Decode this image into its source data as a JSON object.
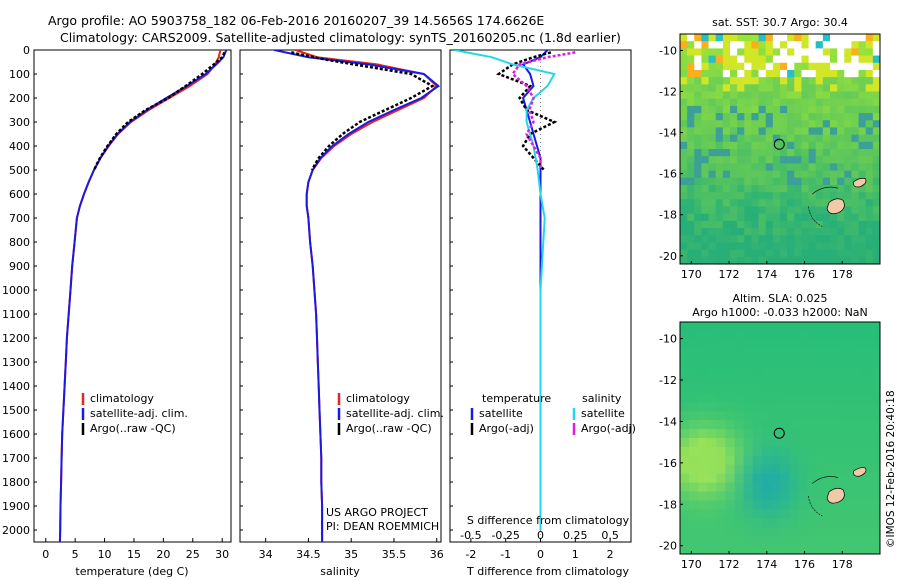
{
  "header": {
    "line1": "Argo profile: AO 5903758_182 06-Feb-2016 20160207_39 14.5656S 174.6626E",
    "line2": "Climatology: CARS2009. Satellite-adjusted climatology: synTS_20160205.nc (1.8d earlier)"
  },
  "colors": {
    "climatology": "#e8231c",
    "satellite": "#1a1ae6",
    "argo": "#000000",
    "satellite_salinity": "#22d8e8",
    "argo_adj_salinity": "#e01ee0"
  },
  "depth_axis": {
    "range": [
      0,
      2050
    ],
    "ticks": [
      "0",
      "100",
      "200",
      "300",
      "400",
      "500",
      "600",
      "700",
      "800",
      "900",
      "1000",
      "1100",
      "1200",
      "1300",
      "1400",
      "1500",
      "1600",
      "1700",
      "1800",
      "1900",
      "2000"
    ]
  },
  "temperature_panel": {
    "xlabel": "temperature (deg C)",
    "xticks": [
      "0",
      "5",
      "10",
      "15",
      "20",
      "25",
      "30"
    ],
    "legend": [
      "climatology",
      "satellite-adj. clim.",
      "Argo(..raw -QC)"
    ]
  },
  "salinity_panel": {
    "xlabel": "salinity",
    "xticks": [
      "34",
      "34.5",
      "35",
      "35.5",
      "36"
    ],
    "legend": [
      "climatology",
      "satellite-adj. clim.",
      "Argo(..raw -QC)"
    ],
    "project_line1": "US ARGO PROJECT",
    "project_line2": "PI: DEAN ROEMMICH"
  },
  "difference_panel": {
    "top_axis_label": "S difference from climatology",
    "top_ticks": [
      "-0.5",
      "-0.25",
      "0",
      "0.25",
      "0.5"
    ],
    "xlabel": "T difference from climatology",
    "xticks": [
      "-2",
      "-1",
      "0",
      "1",
      "2"
    ],
    "legend_temp_title": "temperature",
    "legend_temp_items": [
      "satellite",
      "Argo(-adj)"
    ],
    "legend_sal_title": "salinity",
    "legend_sal_items": [
      "satellite",
      "Argo(-adj)"
    ]
  },
  "sst_map": {
    "title": "sat. SST: 30.7  Argo: 30.4",
    "yticks": [
      "-10",
      "-12",
      "-14",
      "-16",
      "-18",
      "-20"
    ],
    "xticks": [
      "170",
      "172",
      "174",
      "176",
      "178"
    ]
  },
  "sla_map": {
    "title_line1": "Altim. SLA: 0.025",
    "title_line2": "Argo h1000: -0.033 h2000: NaN",
    "yticks": [
      "-10",
      "-12",
      "-14",
      "-16",
      "-18",
      "-20"
    ],
    "xticks": [
      "170",
      "172",
      "174",
      "176",
      "178"
    ]
  },
  "watermark": "©IMOS 12-Feb-2016 20:40:18",
  "chart_data": [
    {
      "type": "line",
      "name": "temperature-profile",
      "xlabel": "temperature (deg C)",
      "ylabel": "depth (m)",
      "xlim": [
        -2,
        31.5
      ],
      "ylim": [
        2050,
        0
      ],
      "series": [
        {
          "name": "climatology",
          "color": "#e8231c",
          "points": [
            [
              29.7,
              0
            ],
            [
              29.4,
              30
            ],
            [
              28.8,
              60
            ],
            [
              27.5,
              100
            ],
            [
              24.5,
              150
            ],
            [
              21,
              200
            ],
            [
              17.5,
              250
            ],
            [
              14.5,
              300
            ],
            [
              12.3,
              350
            ],
            [
              10.7,
              400
            ],
            [
              9.3,
              450
            ],
            [
              8.2,
              500
            ],
            [
              7.3,
              550
            ],
            [
              6.5,
              600
            ],
            [
              5.8,
              650
            ],
            [
              5.3,
              700
            ],
            [
              4.9,
              800
            ],
            [
              4.5,
              900
            ],
            [
              4.2,
              1000
            ],
            [
              3.9,
              1100
            ],
            [
              3.6,
              1200
            ],
            [
              3.4,
              1300
            ],
            [
              3.2,
              1400
            ],
            [
              3.0,
              1500
            ],
            [
              2.8,
              1600
            ],
            [
              2.7,
              1700
            ],
            [
              2.6,
              1800
            ],
            [
              2.5,
              1900
            ],
            [
              2.45,
              2000
            ],
            [
              2.4,
              2050
            ]
          ]
        },
        {
          "name": "satellite-adj. clim.",
          "color": "#1a1ae6",
          "points": [
            [
              30.7,
              0
            ],
            [
              30.2,
              30
            ],
            [
              29.0,
              60
            ],
            [
              27.2,
              100
            ],
            [
              24.0,
              150
            ],
            [
              20.5,
              200
            ],
            [
              17.2,
              250
            ],
            [
              14.3,
              300
            ],
            [
              12.2,
              350
            ],
            [
              10.6,
              400
            ],
            [
              9.3,
              450
            ],
            [
              8.2,
              500
            ],
            [
              7.3,
              550
            ],
            [
              6.5,
              600
            ],
            [
              5.8,
              650
            ],
            [
              5.3,
              700
            ],
            [
              4.9,
              800
            ],
            [
              4.5,
              900
            ],
            [
              4.2,
              1000
            ],
            [
              3.9,
              1100
            ],
            [
              3.6,
              1200
            ],
            [
              3.4,
              1300
            ],
            [
              3.2,
              1400
            ],
            [
              3.0,
              1500
            ],
            [
              2.8,
              1600
            ],
            [
              2.7,
              1700
            ],
            [
              2.6,
              1800
            ],
            [
              2.5,
              1900
            ],
            [
              2.45,
              2000
            ],
            [
              2.4,
              2050
            ]
          ]
        },
        {
          "name": "Argo(..raw -QC)",
          "color": "#000000",
          "points": [
            [
              30.4,
              10
            ],
            [
              30.0,
              30
            ],
            [
              28.6,
              60
            ],
            [
              26.6,
              100
            ],
            [
              23.8,
              150
            ],
            [
              20.8,
              200
            ],
            [
              17.0,
              250
            ],
            [
              14.0,
              300
            ],
            [
              12.0,
              350
            ],
            [
              10.5,
              400
            ],
            [
              9.2,
              450
            ],
            [
              8.2,
              500
            ]
          ]
        }
      ]
    },
    {
      "type": "line",
      "name": "salinity-profile",
      "xlabel": "salinity",
      "ylabel": "depth (m)",
      "xlim": [
        33.7,
        36.05
      ],
      "ylim": [
        2050,
        0
      ],
      "series": [
        {
          "name": "climatology",
          "color": "#e8231c",
          "points": [
            [
              34.35,
              0
            ],
            [
              34.6,
              30
            ],
            [
              35.3,
              60
            ],
            [
              35.85,
              100
            ],
            [
              36.0,
              150
            ],
            [
              35.85,
              200
            ],
            [
              35.55,
              250
            ],
            [
              35.25,
              300
            ],
            [
              35.0,
              350
            ],
            [
              34.8,
              400
            ],
            [
              34.65,
              450
            ],
            [
              34.55,
              500
            ],
            [
              34.5,
              550
            ],
            [
              34.48,
              600
            ],
            [
              34.48,
              650
            ],
            [
              34.5,
              700
            ],
            [
              34.52,
              800
            ],
            [
              34.55,
              900
            ],
            [
              34.57,
              1000
            ],
            [
              34.59,
              1100
            ],
            [
              34.6,
              1200
            ],
            [
              34.61,
              1300
            ],
            [
              34.62,
              1400
            ],
            [
              34.63,
              1500
            ],
            [
              34.64,
              1600
            ],
            [
              34.65,
              1700
            ],
            [
              34.65,
              1800
            ],
            [
              34.66,
              1900
            ],
            [
              34.66,
              2000
            ],
            [
              34.66,
              2050
            ]
          ]
        },
        {
          "name": "satellite-adj. clim.",
          "color": "#1a1ae6",
          "points": [
            [
              34.1,
              0
            ],
            [
              34.5,
              30
            ],
            [
              35.2,
              60
            ],
            [
              35.85,
              100
            ],
            [
              36.02,
              150
            ],
            [
              35.82,
              200
            ],
            [
              35.5,
              250
            ],
            [
              35.2,
              300
            ],
            [
              34.97,
              350
            ],
            [
              34.78,
              400
            ],
            [
              34.64,
              450
            ],
            [
              34.55,
              500
            ],
            [
              34.5,
              550
            ],
            [
              34.48,
              600
            ],
            [
              34.48,
              650
            ],
            [
              34.5,
              700
            ],
            [
              34.52,
              800
            ],
            [
              34.55,
              900
            ],
            [
              34.57,
              1000
            ],
            [
              34.59,
              1100
            ],
            [
              34.6,
              1200
            ],
            [
              34.61,
              1300
            ],
            [
              34.62,
              1400
            ],
            [
              34.63,
              1500
            ],
            [
              34.64,
              1600
            ],
            [
              34.65,
              1700
            ],
            [
              34.65,
              1800
            ],
            [
              34.66,
              1900
            ],
            [
              34.66,
              2000
            ],
            [
              34.66,
              2050
            ]
          ]
        },
        {
          "name": "Argo(..raw -QC)",
          "color": "#000000",
          "points": [
            [
              34.3,
              10
            ],
            [
              34.7,
              40
            ],
            [
              35.2,
              70
            ],
            [
              35.7,
              100
            ],
            [
              35.95,
              150
            ],
            [
              35.7,
              200
            ],
            [
              35.4,
              250
            ],
            [
              35.1,
              300
            ],
            [
              34.9,
              350
            ],
            [
              34.74,
              400
            ],
            [
              34.62,
              450
            ],
            [
              34.54,
              500
            ]
          ]
        }
      ]
    },
    {
      "type": "line",
      "name": "difference-profile",
      "xlabel": "T difference from climatology",
      "top_label": "S difference from climatology",
      "xlim": [
        -2.6,
        2.6
      ],
      "s_xlim": [
        -0.65,
        0.65
      ],
      "ylim": [
        2050,
        0
      ],
      "series": [
        {
          "name": "temperature satellite",
          "color": "#1a1ae6",
          "axis": "T",
          "points": [
            [
              0.2,
              0
            ],
            [
              0.0,
              30
            ],
            [
              -0.5,
              60
            ],
            [
              -0.3,
              100
            ],
            [
              -0.2,
              150
            ],
            [
              -0.5,
              200
            ],
            [
              -0.4,
              250
            ],
            [
              -0.3,
              300
            ],
            [
              -0.2,
              350
            ],
            [
              -0.1,
              400
            ],
            [
              0,
              450
            ],
            [
              0,
              500
            ],
            [
              0,
              600
            ],
            [
              0,
              800
            ],
            [
              0,
              2000
            ]
          ]
        },
        {
          "name": "temperature Argo(-adj)",
          "color": "#000000",
          "axis": "T",
          "points": [
            [
              0.3,
              10
            ],
            [
              -0.2,
              30
            ],
            [
              -0.8,
              60
            ],
            [
              -1.2,
              100
            ],
            [
              -0.3,
              150
            ],
            [
              -0.6,
              200
            ],
            [
              -0.4,
              250
            ],
            [
              0.4,
              300
            ],
            [
              -0.3,
              350
            ],
            [
              -0.5,
              400
            ],
            [
              -0.2,
              450
            ],
            [
              0.1,
              500
            ]
          ]
        },
        {
          "name": "salinity satellite",
          "color": "#22d8e8",
          "axis": "S",
          "points": [
            [
              -0.62,
              0
            ],
            [
              -0.35,
              30
            ],
            [
              -0.2,
              60
            ],
            [
              0.1,
              100
            ],
            [
              0.05,
              150
            ],
            [
              -0.05,
              200
            ],
            [
              -0.1,
              250
            ],
            [
              -0.1,
              300
            ],
            [
              -0.05,
              400
            ],
            [
              -0.02,
              500
            ],
            [
              0,
              600
            ],
            [
              0.03,
              700
            ],
            [
              0.02,
              800
            ],
            [
              0,
              1000
            ],
            [
              0,
              2000
            ]
          ]
        },
        {
          "name": "salinity Argo(-adj)",
          "color": "#e01ee0",
          "axis": "S",
          "points": [
            [
              0.25,
              10
            ],
            [
              0.05,
              30
            ],
            [
              -0.15,
              60
            ],
            [
              -0.2,
              100
            ],
            [
              -0.1,
              150
            ],
            [
              -0.05,
              200
            ],
            [
              -0.08,
              250
            ],
            [
              -0.05,
              300
            ],
            [
              -0.1,
              350
            ],
            [
              -0.05,
              400
            ],
            [
              0.0,
              450
            ],
            [
              0.0,
              500
            ]
          ]
        }
      ]
    },
    {
      "type": "heatmap",
      "name": "sst-map",
      "title": "sat. SST: 30.7  Argo: 30.4",
      "xlim": [
        169.4,
        180
      ],
      "ylim": [
        -20.4,
        -9.2
      ],
      "argo_position": [
        174.66,
        -14.57
      ]
    },
    {
      "type": "heatmap",
      "name": "sla-map",
      "title": "Altim. SLA: 0.025",
      "xlim": [
        169.4,
        180
      ],
      "ylim": [
        -20.4,
        -9.2
      ],
      "argo_position": [
        174.66,
        -14.57
      ]
    }
  ]
}
